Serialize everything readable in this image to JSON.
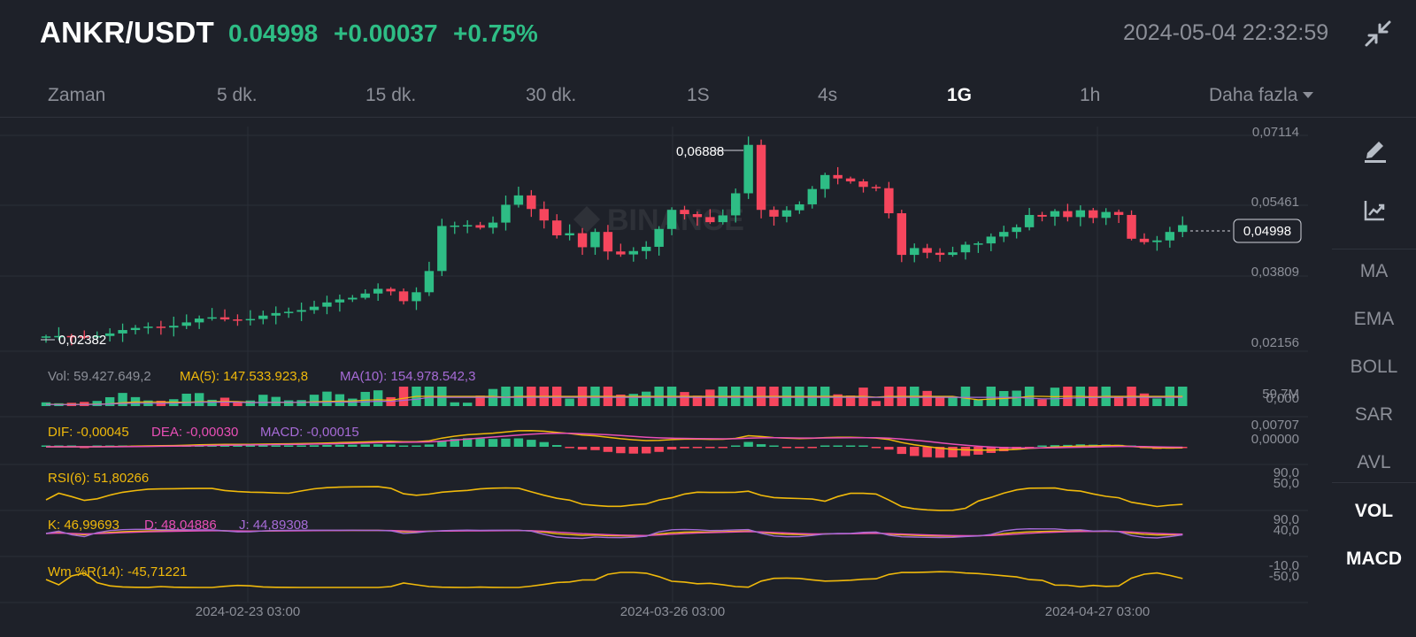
{
  "header": {
    "pair": "ANKR/USDT",
    "last_price": "0.04998",
    "change": "+0.00037",
    "change_pct": "+0.75%",
    "timestamp": "2024-05-04 22:32:59",
    "up_color": "#2ebd85",
    "down_color": "#f6465d"
  },
  "tabs": [
    {
      "label": "Zaman",
      "active": false
    },
    {
      "label": "5 dk.",
      "active": false
    },
    {
      "label": "15 dk.",
      "active": false
    },
    {
      "label": "30 dk.",
      "active": false
    },
    {
      "label": "1S",
      "active": false
    },
    {
      "label": "4s",
      "active": false
    },
    {
      "label": "1G",
      "active": true
    },
    {
      "label": "1h",
      "active": false
    },
    {
      "label": "Daha fazla",
      "active": false
    }
  ],
  "watermark": "BINANCE",
  "price_axis": [
    "0,07114",
    "0,05461",
    "0,03809",
    "0,02156"
  ],
  "current_price_tag": "0,04998",
  "high_label": "0,06888",
  "low_label": "0,02382",
  "volume_panel": {
    "vol": "Vol: 59.427.649,2",
    "ma5": "MA(5): 147.533.923,8",
    "ma10": "MA(10): 154.978.542,3",
    "axis": [
      "59,7M",
      "0,000"
    ]
  },
  "macd_panel": {
    "dif": "DIF: -0,00045",
    "dea": "DEA: -0,00030",
    "macd": "MACD: -0,00015",
    "axis": [
      "0,00707",
      "0,00000"
    ]
  },
  "rsi_panel": {
    "label": "RSI(6): 51,80266",
    "axis": [
      "90,0",
      "50,0"
    ]
  },
  "kdj_panel": {
    "k": "K: 46,99693",
    "d": "D: 48,04886",
    "j": "J: 44,89308",
    "axis": [
      "90,0",
      "40,0"
    ]
  },
  "wr_panel": {
    "label": "Wm %R(14): -45,71221",
    "axis": [
      "-10,0",
      "-50,0"
    ]
  },
  "time_axis": [
    "2024-02-23 03:00",
    "2024-03-26 03:00",
    "2024-04-27 03:00"
  ],
  "rail": {
    "buttons": [
      {
        "label": "MA",
        "active": false
      },
      {
        "label": "EMA",
        "active": false
      },
      {
        "label": "BOLL",
        "active": false
      },
      {
        "label": "SAR",
        "active": false
      },
      {
        "label": "AVL",
        "active": false
      },
      {
        "label": "VOL",
        "active": true
      },
      {
        "label": "MACD",
        "active": true
      }
    ],
    "icons": [
      "draw-pen-icon",
      "indicator-chart-icon"
    ]
  },
  "chart_data": {
    "type": "candlestick",
    "interval": "1G",
    "ylim": [
      0.02156,
      0.07114
    ],
    "closes": [
      0.0238,
      0.0239,
      0.0238,
      0.0237,
      0.0239,
      0.0245,
      0.0253,
      0.0258,
      0.0261,
      0.0259,
      0.0263,
      0.0271,
      0.028,
      0.0283,
      0.0278,
      0.0276,
      0.0279,
      0.0287,
      0.0293,
      0.0296,
      0.03,
      0.0308,
      0.0318,
      0.0325,
      0.0329,
      0.0339,
      0.035,
      0.0344,
      0.0321,
      0.0342,
      0.0392,
      0.0498,
      0.0499,
      0.05,
      0.0494,
      0.0506,
      0.0548,
      0.057,
      0.0538,
      0.0511,
      0.0476,
      0.0481,
      0.0448,
      0.0484,
      0.0438,
      0.0431,
      0.0439,
      0.0449,
      0.0491,
      0.0536,
      0.0526,
      0.0519,
      0.0507,
      0.0523,
      0.0575,
      0.0689,
      0.0536,
      0.052,
      0.0535,
      0.0549,
      0.0585,
      0.0618,
      0.061,
      0.0603,
      0.059,
      0.0587,
      0.0528,
      0.043,
      0.0446,
      0.0435,
      0.043,
      0.0436,
      0.0454,
      0.0457,
      0.0473,
      0.0484,
      0.0495,
      0.0524,
      0.052,
      0.0533,
      0.0519,
      0.0535,
      0.0517,
      0.0531,
      0.0524,
      0.0468,
      0.046,
      0.0464,
      0.0484,
      0.05
    ]
  }
}
